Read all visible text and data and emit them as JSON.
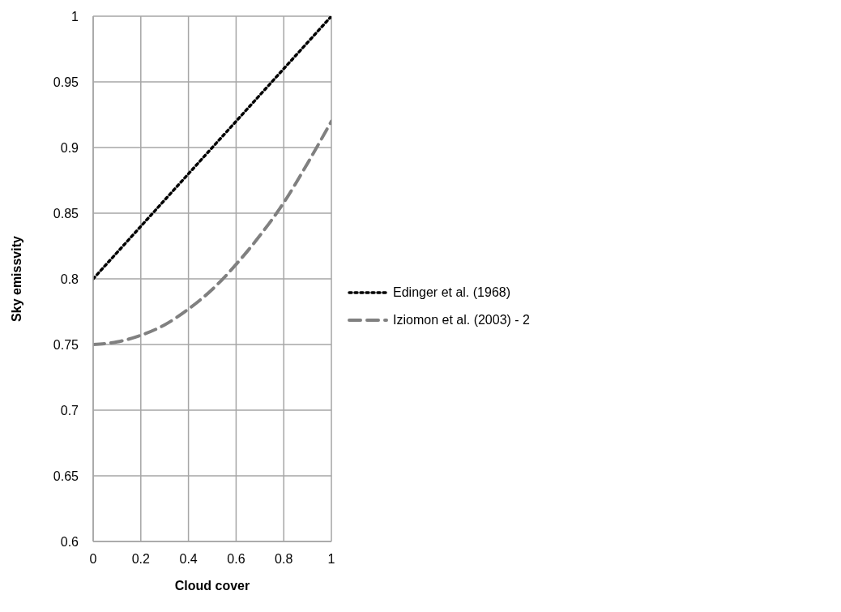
{
  "chart_data": {
    "type": "line",
    "xlabel": "Cloud cover",
    "ylabel": "Sky emissvity",
    "x": [
      0,
      0.1,
      0.2,
      0.3,
      0.4,
      0.5,
      0.6,
      0.7,
      0.8,
      0.9,
      1
    ],
    "series": [
      {
        "name": "Edinger et al. (1968)",
        "color": "#000000",
        "line_style": "dotted",
        "values": [
          0.8,
          0.82,
          0.84,
          0.86,
          0.88,
          0.9,
          0.92,
          0.94,
          0.96,
          0.98,
          1.0
        ]
      },
      {
        "name": "Iziomon et al. (2003) - 2",
        "color": "#808080",
        "line_style": "dashed",
        "values": [
          0.75,
          0.752,
          0.757,
          0.765,
          0.777,
          0.792,
          0.811,
          0.833,
          0.858,
          0.888,
          0.92
        ]
      }
    ],
    "xlim": [
      0,
      1
    ],
    "xticks": [
      0,
      0.2,
      0.4,
      0.6,
      0.8,
      1
    ],
    "ylim": [
      0.6,
      1
    ],
    "yticks": [
      0.6,
      0.65,
      0.7,
      0.75,
      0.8,
      0.85,
      0.9,
      0.95,
      1
    ],
    "grid": true,
    "legend": "right",
    "marker": "none"
  }
}
